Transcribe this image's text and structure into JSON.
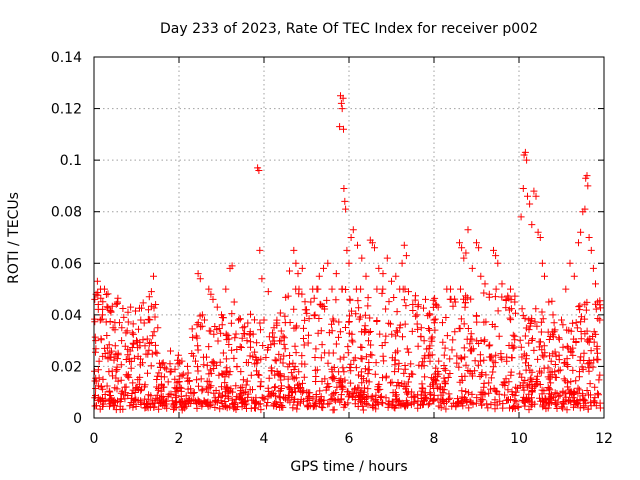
{
  "chart_data": {
    "type": "scatter",
    "title": "Day 233 of 2023, Rate Of TEC Index for receiver p002",
    "xlabel": "GPS time / hours",
    "ylabel": "ROTI / TECUs",
    "xlim": [
      0,
      12
    ],
    "ylim": [
      0,
      0.14
    ],
    "xticks": [
      0,
      2,
      4,
      6,
      8,
      10,
      12
    ],
    "yticks": [
      0,
      0.02,
      0.04,
      0.06,
      0.08,
      0.1,
      0.12,
      0.14
    ],
    "xtick_labels": [
      "0",
      "2",
      "4",
      "6",
      "8",
      "10",
      "12"
    ],
    "ytick_labels": [
      "0",
      "0.02",
      "0.04",
      "0.06",
      "0.08",
      "0.1",
      "0.12",
      "0.14"
    ],
    "grid": true,
    "marker": "+",
    "color": "#ff0000",
    "series": [
      {
        "name": "ROTI",
        "points": [
          [
            0.02,
            0.046
          ],
          [
            0.05,
            0.048
          ],
          [
            0.08,
            0.053
          ],
          [
            0.1,
            0.044
          ],
          [
            0.04,
            0.03
          ],
          [
            0.12,
            0.022
          ],
          [
            0.15,
            0.038
          ],
          [
            0.2,
            0.04
          ],
          [
            0.25,
            0.027
          ],
          [
            0.3,
            0.032
          ],
          [
            0.35,
            0.018
          ],
          [
            0.4,
            0.041
          ],
          [
            0.45,
            0.035
          ],
          [
            0.5,
            0.028
          ],
          [
            0.55,
            0.045
          ],
          [
            0.6,
            0.037
          ],
          [
            0.65,
            0.03
          ],
          [
            0.7,
            0.039
          ],
          [
            0.75,
            0.033
          ],
          [
            0.8,
            0.041
          ],
          [
            0.85,
            0.026
          ],
          [
            0.9,
            0.033
          ],
          [
            1.0,
            0.03
          ],
          [
            1.1,
            0.038
          ],
          [
            1.2,
            0.028
          ],
          [
            1.3,
            0.047
          ],
          [
            1.35,
            0.049
          ],
          [
            1.4,
            0.055
          ],
          [
            1.45,
            0.044
          ],
          [
            1.5,
            0.035
          ],
          [
            1.6,
            0.021
          ],
          [
            1.7,
            0.019
          ],
          [
            1.8,
            0.026
          ],
          [
            1.9,
            0.015
          ],
          [
            2.0,
            0.014
          ],
          [
            2.1,
            0.017
          ],
          [
            2.2,
            0.02
          ],
          [
            2.3,
            0.025
          ],
          [
            2.45,
            0.056
          ],
          [
            2.5,
            0.054
          ],
          [
            2.55,
            0.04
          ],
          [
            2.6,
            0.038
          ],
          [
            2.7,
            0.05
          ],
          [
            2.75,
            0.048
          ],
          [
            2.8,
            0.046
          ],
          [
            2.9,
            0.043
          ],
          [
            3.0,
            0.04
          ],
          [
            3.1,
            0.05
          ],
          [
            3.2,
            0.058
          ],
          [
            3.25,
            0.059
          ],
          [
            3.3,
            0.045
          ],
          [
            3.4,
            0.038
          ],
          [
            3.5,
            0.035
          ],
          [
            3.6,
            0.03
          ],
          [
            3.85,
            0.097
          ],
          [
            3.88,
            0.096
          ],
          [
            3.9,
            0.065
          ],
          [
            3.95,
            0.054
          ],
          [
            4.0,
            0.038
          ],
          [
            4.1,
            0.049
          ],
          [
            4.2,
            0.033
          ],
          [
            4.3,
            0.036
          ],
          [
            4.4,
            0.03
          ],
          [
            4.5,
            0.037
          ],
          [
            4.6,
            0.057
          ],
          [
            4.7,
            0.065
          ],
          [
            4.75,
            0.06
          ],
          [
            4.8,
            0.056
          ],
          [
            4.9,
            0.058
          ],
          [
            5.0,
            0.042
          ],
          [
            5.1,
            0.045
          ],
          [
            5.2,
            0.04
          ],
          [
            5.3,
            0.055
          ],
          [
            5.4,
            0.058
          ],
          [
            5.5,
            0.06
          ],
          [
            5.6,
            0.05
          ],
          [
            5.7,
            0.056
          ],
          [
            5.78,
            0.113
          ],
          [
            5.8,
            0.125
          ],
          [
            5.82,
            0.122
          ],
          [
            5.84,
            0.12
          ],
          [
            5.86,
            0.124
          ],
          [
            5.87,
            0.112
          ],
          [
            5.88,
            0.089
          ],
          [
            5.9,
            0.084
          ],
          [
            5.92,
            0.081
          ],
          [
            5.95,
            0.065
          ],
          [
            6.0,
            0.06
          ],
          [
            6.05,
            0.07
          ],
          [
            6.1,
            0.073
          ],
          [
            6.2,
            0.067
          ],
          [
            6.3,
            0.062
          ],
          [
            6.4,
            0.055
          ],
          [
            6.5,
            0.069
          ],
          [
            6.55,
            0.068
          ],
          [
            6.6,
            0.066
          ],
          [
            6.7,
            0.058
          ],
          [
            6.8,
            0.056
          ],
          [
            6.9,
            0.062
          ],
          [
            7.0,
            0.053
          ],
          [
            7.1,
            0.055
          ],
          [
            7.25,
            0.06
          ],
          [
            7.3,
            0.067
          ],
          [
            7.35,
            0.063
          ],
          [
            7.4,
            0.049
          ],
          [
            7.5,
            0.044
          ],
          [
            7.6,
            0.04
          ],
          [
            7.7,
            0.035
          ],
          [
            7.8,
            0.046
          ],
          [
            7.9,
            0.04
          ],
          [
            8.0,
            0.038
          ],
          [
            8.1,
            0.043
          ],
          [
            8.2,
            0.037
          ],
          [
            8.3,
            0.05
          ],
          [
            8.4,
            0.046
          ],
          [
            8.5,
            0.045
          ],
          [
            8.6,
            0.068
          ],
          [
            8.65,
            0.066
          ],
          [
            8.7,
            0.062
          ],
          [
            8.75,
            0.064
          ],
          [
            8.8,
            0.073
          ],
          [
            8.9,
            0.058
          ],
          [
            9.0,
            0.068
          ],
          [
            9.05,
            0.066
          ],
          [
            9.1,
            0.055
          ],
          [
            9.2,
            0.052
          ],
          [
            9.3,
            0.048
          ],
          [
            9.4,
            0.065
          ],
          [
            9.45,
            0.063
          ],
          [
            9.5,
            0.06
          ],
          [
            9.6,
            0.052
          ],
          [
            9.7,
            0.046
          ],
          [
            9.8,
            0.05
          ],
          [
            9.9,
            0.045
          ],
          [
            10.05,
            0.078
          ],
          [
            10.1,
            0.089
          ],
          [
            10.12,
            0.102
          ],
          [
            10.15,
            0.103
          ],
          [
            10.18,
            0.1
          ],
          [
            10.2,
            0.086
          ],
          [
            10.25,
            0.083
          ],
          [
            10.3,
            0.075
          ],
          [
            10.35,
            0.088
          ],
          [
            10.4,
            0.086
          ],
          [
            10.45,
            0.072
          ],
          [
            10.5,
            0.07
          ],
          [
            10.55,
            0.06
          ],
          [
            10.6,
            0.055
          ],
          [
            10.7,
            0.045
          ],
          [
            10.8,
            0.04
          ],
          [
            11.0,
            0.038
          ],
          [
            11.1,
            0.05
          ],
          [
            11.2,
            0.06
          ],
          [
            11.3,
            0.055
          ],
          [
            11.4,
            0.068
          ],
          [
            11.45,
            0.072
          ],
          [
            11.5,
            0.08
          ],
          [
            11.55,
            0.081
          ],
          [
            11.57,
            0.093
          ],
          [
            11.6,
            0.094
          ],
          [
            11.62,
            0.09
          ],
          [
            11.65,
            0.07
          ],
          [
            11.7,
            0.065
          ],
          [
            11.75,
            0.058
          ],
          [
            11.8,
            0.052
          ],
          [
            11.85,
            0.045
          ],
          [
            11.9,
            0.038
          ]
        ]
      }
    ]
  }
}
